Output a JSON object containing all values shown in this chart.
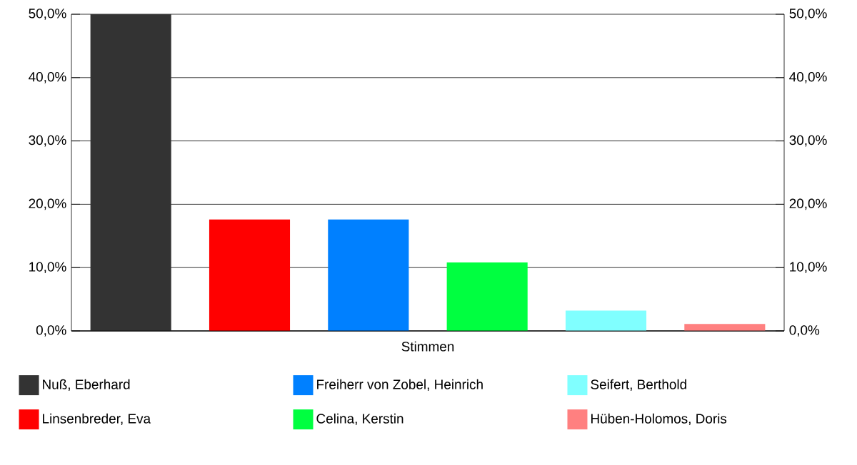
{
  "chart_data": {
    "type": "bar",
    "categories": [
      "Stimmen"
    ],
    "series": [
      {
        "name": "Nuß, Eberhard",
        "color": "#333333",
        "values": [
          50.0
        ]
      },
      {
        "name": "Linsenbreder, Eva",
        "color": "#ff0000",
        "values": [
          17.6
        ]
      },
      {
        "name": "Freiherr von Zobel, Heinrich",
        "color": "#0080ff",
        "values": [
          17.6
        ]
      },
      {
        "name": "Celina, Kerstin",
        "color": "#00ff40",
        "values": [
          10.8
        ]
      },
      {
        "name": "Seifert, Berthold",
        "color": "#80ffff",
        "values": [
          3.2
        ]
      },
      {
        "name": "Hüben-Holomos, Doris",
        "color": "#ff8080",
        "values": [
          1.1
        ]
      }
    ],
    "ylim": [
      0,
      50
    ],
    "yticks": [
      {
        "value": 0,
        "label": "0,0%"
      },
      {
        "value": 10,
        "label": "10,0%"
      },
      {
        "value": 20,
        "label": "20,0%"
      },
      {
        "value": 30,
        "label": "30,0%"
      },
      {
        "value": 40,
        "label": "40,0%"
      },
      {
        "value": 50,
        "label": "50,0%"
      }
    ],
    "grid": "y",
    "legend": "bottom"
  }
}
